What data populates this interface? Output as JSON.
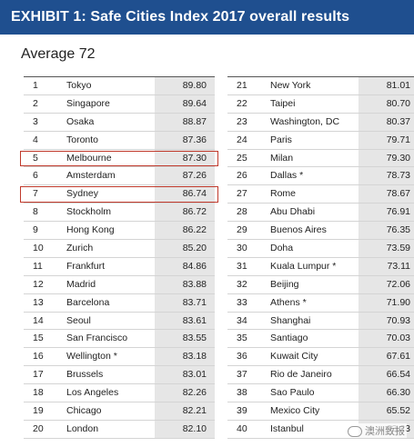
{
  "title": "EXHIBIT 1: Safe Cities Index 2017 overall results",
  "average": "Average 72",
  "left_rows": [
    {
      "rank": "1",
      "city": "Tokyo",
      "score": "89.80"
    },
    {
      "rank": "2",
      "city": "Singapore",
      "score": "89.64"
    },
    {
      "rank": "3",
      "city": "Osaka",
      "score": "88.87"
    },
    {
      "rank": "4",
      "city": "Toronto",
      "score": "87.36"
    },
    {
      "rank": "5",
      "city": "Melbourne",
      "score": "87.30"
    },
    {
      "rank": "6",
      "city": "Amsterdam",
      "score": "87.26"
    },
    {
      "rank": "7",
      "city": "Sydney",
      "score": "86.74"
    },
    {
      "rank": "8",
      "city": "Stockholm",
      "score": "86.72"
    },
    {
      "rank": "9",
      "city": "Hong Kong",
      "score": "86.22"
    },
    {
      "rank": "10",
      "city": "Zurich",
      "score": "85.20"
    },
    {
      "rank": "11",
      "city": "Frankfurt",
      "score": "84.86"
    },
    {
      "rank": "12",
      "city": "Madrid",
      "score": "83.88"
    },
    {
      "rank": "13",
      "city": "Barcelona",
      "score": "83.71"
    },
    {
      "rank": "14",
      "city": "Seoul",
      "score": "83.61"
    },
    {
      "rank": "15",
      "city": "San Francisco",
      "score": "83.55"
    },
    {
      "rank": "16",
      "city": "Wellington *",
      "score": "83.18"
    },
    {
      "rank": "17",
      "city": "Brussels",
      "score": "83.01"
    },
    {
      "rank": "18",
      "city": "Los Angeles",
      "score": "82.26"
    },
    {
      "rank": "19",
      "city": "Chicago",
      "score": "82.21"
    },
    {
      "rank": "20",
      "city": "London",
      "score": "82.10"
    }
  ],
  "right_rows": [
    {
      "rank": "21",
      "city": "New York",
      "score": "81.01"
    },
    {
      "rank": "22",
      "city": "Taipei",
      "score": "80.70"
    },
    {
      "rank": "23",
      "city": "Washington, DC",
      "score": "80.37"
    },
    {
      "rank": "24",
      "city": "Paris",
      "score": "79.71"
    },
    {
      "rank": "25",
      "city": "Milan",
      "score": "79.30"
    },
    {
      "rank": "26",
      "city": "Dallas *",
      "score": "78.73"
    },
    {
      "rank": "27",
      "city": "Rome",
      "score": "78.67"
    },
    {
      "rank": "28",
      "city": "Abu Dhabi",
      "score": "76.91"
    },
    {
      "rank": "29",
      "city": "Buenos Aires",
      "score": "76.35"
    },
    {
      "rank": "30",
      "city": "Doha",
      "score": "73.59"
    },
    {
      "rank": "31",
      "city": "Kuala Lumpur *",
      "score": "73.11"
    },
    {
      "rank": "32",
      "city": "Beijing",
      "score": "72.06"
    },
    {
      "rank": "33",
      "city": "Athens *",
      "score": "71.90"
    },
    {
      "rank": "34",
      "city": "Shanghai",
      "score": "70.93"
    },
    {
      "rank": "35",
      "city": "Santiago",
      "score": "70.03"
    },
    {
      "rank": "36",
      "city": "Kuwait City",
      "score": "67.61"
    },
    {
      "rank": "37",
      "city": "Rio de Janeiro",
      "score": "66.54"
    },
    {
      "rank": "38",
      "city": "Sao Paulo",
      "score": "66.30"
    },
    {
      "rank": "39",
      "city": "Mexico City",
      "score": "65.52"
    },
    {
      "rank": "40",
      "city": "Istanbul",
      "score": "63.23"
    }
  ],
  "highlighted_ranks": [
    "5",
    "7"
  ],
  "highlight_color": "#c0392b",
  "header_color": "#1f4f8f",
  "watermark": "澳洲致报"
}
